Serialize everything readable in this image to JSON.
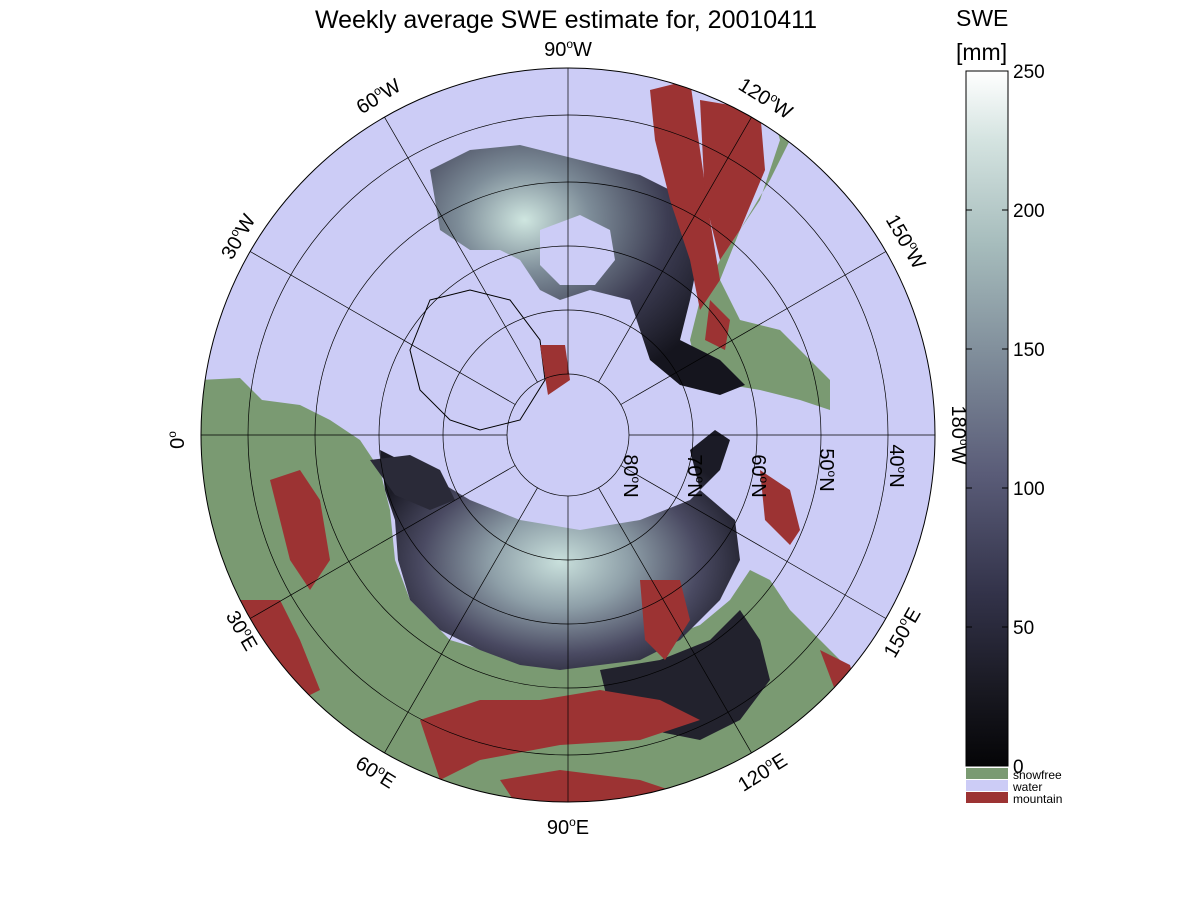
{
  "title": "Weekly average SWE estimate for, 20010411",
  "colorbar": {
    "title_line1": "SWE",
    "title_line2": "[mm]",
    "ticks": [
      "250",
      "200",
      "150",
      "100",
      "50",
      "0"
    ],
    "tick_values": [
      250,
      200,
      150,
      100,
      50,
      0
    ],
    "range": [
      0,
      250
    ],
    "categories": [
      {
        "label": "snowfree",
        "color": "#7a9a72"
      },
      {
        "label": "water",
        "color": "#ccccf6"
      },
      {
        "label": "mountain",
        "color": "#9c3333"
      }
    ]
  },
  "longitude_labels": {
    "lon_90w": {
      "deg": "90",
      "dir": "W"
    },
    "lon_120w": {
      "deg": "120",
      "dir": "W"
    },
    "lon_60w": {
      "deg": "60",
      "dir": "W"
    },
    "lon_150w": {
      "deg": "150",
      "dir": "W"
    },
    "lon_30w": {
      "deg": "30",
      "dir": "W"
    },
    "lon_0": {
      "deg": "0",
      "dir": ""
    },
    "lon_180w": {
      "deg": "180",
      "dir": "W"
    },
    "lon_30e": {
      "deg": "30",
      "dir": "E"
    },
    "lon_150e": {
      "deg": "150",
      "dir": "E"
    },
    "lon_60e": {
      "deg": "60",
      "dir": "E"
    },
    "lon_120e": {
      "deg": "120",
      "dir": "E"
    },
    "lon_90e": {
      "deg": "90",
      "dir": "E"
    }
  },
  "latitude_labels": {
    "lat_80n": {
      "deg": "80",
      "dir": "N"
    },
    "lat_70n": {
      "deg": "70",
      "dir": "N"
    },
    "lat_60n": {
      "deg": "60",
      "dir": "N"
    },
    "lat_50n": {
      "deg": "50",
      "dir": "N"
    },
    "lat_40n": {
      "deg": "40",
      "dir": "N"
    }
  },
  "colors": {
    "water": "#ccccf6",
    "snowfree": "#7a9a72",
    "mountain": "#9c3333",
    "swe_low": "#0d0d14",
    "swe_mid": "#5a5a74",
    "swe_high": "#cfe3df"
  }
}
